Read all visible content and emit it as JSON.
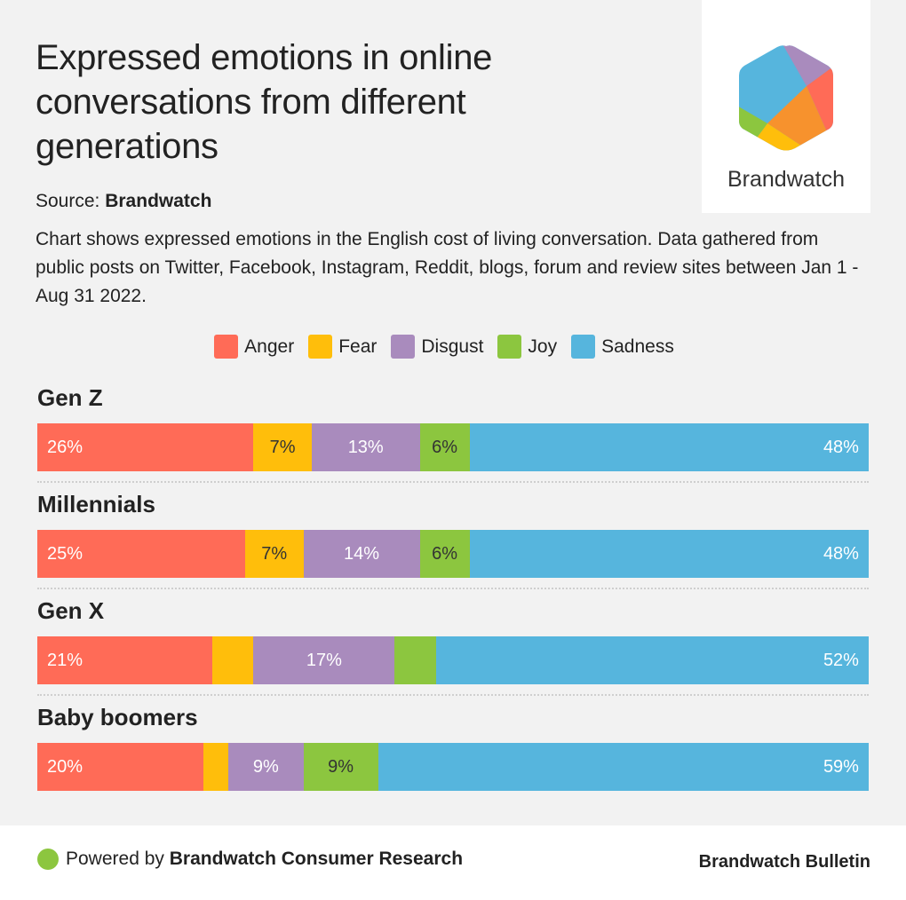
{
  "title": "Expressed emotions in online conversations from different generations",
  "logo": {
    "text": "Brandwatch",
    "icon": "brandwatch-hexagon-logo"
  },
  "source": {
    "label": "Source:",
    "value": "Brandwatch"
  },
  "description": "Chart shows expressed emotions in the English cost of living conversation. Data gathered from public posts on Twitter, Facebook, Instagram, Reddit, blogs, forum and review sites between Jan 1 - Aug 31 2022.",
  "footer": {
    "powered_prefix": "Powered by",
    "powered_name": "Brandwatch Consumer Research",
    "brand": "Brandwatch Bulletin"
  },
  "chart_data": {
    "type": "bar",
    "orientation": "horizontal",
    "stacked": true,
    "normalized": true,
    "title": "Expressed emotions in online conversations from different generations",
    "xlabel": "",
    "ylabel": "",
    "xlim": [
      0,
      100
    ],
    "unit": "%",
    "legend_position": "top-center",
    "categories": [
      "Gen Z",
      "Millennials",
      "Gen X",
      "Baby boomers"
    ],
    "series": [
      {
        "name": "Anger",
        "color": "#ff6b57",
        "values": [
          26,
          25,
          21,
          20
        ],
        "labels": [
          "26%",
          "25%",
          "21%",
          "20%"
        ]
      },
      {
        "name": "Fear",
        "color": "#ffbe0b",
        "values": [
          7,
          7,
          5,
          3
        ],
        "labels": [
          "7%",
          "7%",
          "",
          ""
        ]
      },
      {
        "name": "Disgust",
        "color": "#a98bbd",
        "values": [
          13,
          14,
          17,
          9
        ],
        "labels": [
          "13%",
          "14%",
          "17%",
          "9%"
        ]
      },
      {
        "name": "Joy",
        "color": "#8cc63f",
        "values": [
          6,
          6,
          5,
          9
        ],
        "labels": [
          "6%",
          "6%",
          "",
          "9%"
        ]
      },
      {
        "name": "Sadness",
        "color": "#56b5dd",
        "values": [
          48,
          48,
          52,
          59
        ],
        "labels": [
          "48%",
          "48%",
          "52%",
          "59%"
        ]
      }
    ],
    "label_colors": {
      "Anger": "#ffffff",
      "Fear": "#333333",
      "Disgust": "#ffffff",
      "Joy": "#333333",
      "Sadness": "#ffffff"
    }
  }
}
